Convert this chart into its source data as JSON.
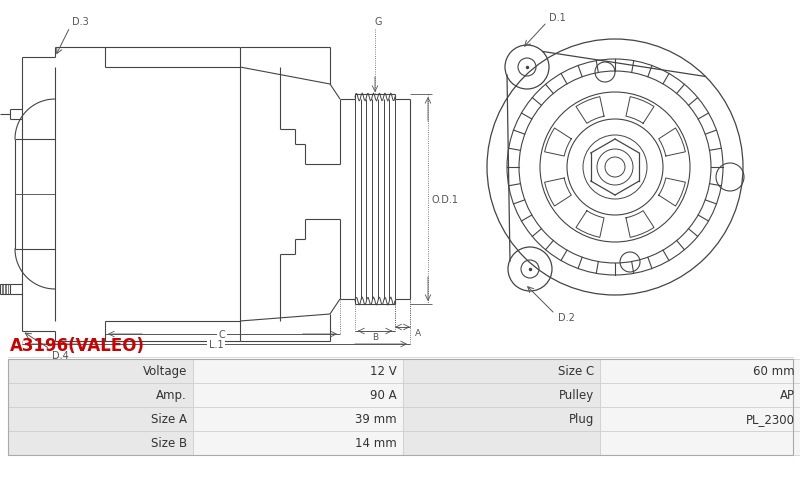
{
  "title": "A3196(VALEO)",
  "title_color": "#cc0000",
  "table_rows": [
    [
      "Voltage",
      "12 V",
      "Size C",
      "60 mm"
    ],
    [
      "Amp.",
      "90 A",
      "Pulley",
      "AP"
    ],
    [
      "Size A",
      "39 mm",
      "Plug",
      "PL_2300"
    ],
    [
      "Size B",
      "14 mm",
      "",
      ""
    ]
  ],
  "bg_color": "#ffffff",
  "table_header_bg": "#e8e8e8",
  "table_row_bg_alt": "#f5f5f5",
  "drawing_line_color": "#444444",
  "title_fontsize": 12,
  "table_fontsize": 8.5,
  "dim_line_color": "#555555"
}
